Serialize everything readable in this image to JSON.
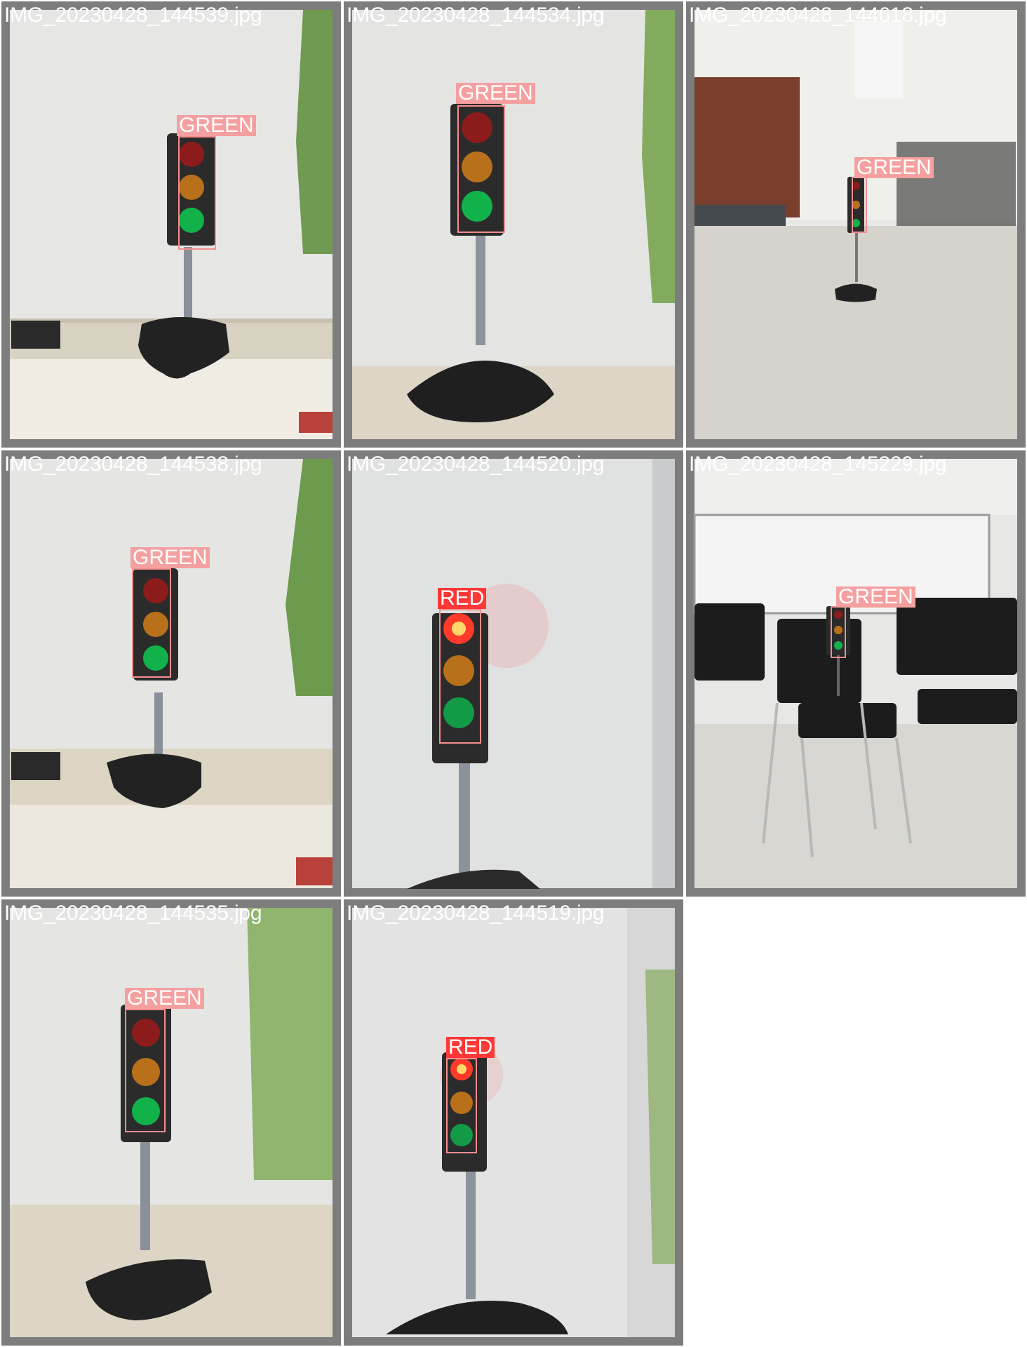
{
  "tiles": [
    {
      "file": "IMG_20230428_144539.jpg",
      "label": "GREEN",
      "scene": "wall"
    },
    {
      "file": "IMG_20230428_144534.jpg",
      "label": "GREEN",
      "scene": "wall"
    },
    {
      "file": "IMG_20230428_144618.jpg",
      "label": "GREEN",
      "scene": "room"
    },
    {
      "file": "IMG_20230428_144538.jpg",
      "label": "GREEN",
      "scene": "wall"
    },
    {
      "file": "IMG_20230428_144520.jpg",
      "label": "RED",
      "scene": "wall"
    },
    {
      "file": "IMG_20230428_145229.jpg",
      "label": "GREEN",
      "scene": "chairs"
    },
    {
      "file": "IMG_20230428_144535.jpg",
      "label": "GREEN",
      "scene": "wall"
    },
    {
      "file": "IMG_20230428_144519.jpg",
      "label": "RED",
      "scene": "wall"
    }
  ],
  "colors": {
    "green_box": "#f58e8e",
    "red_box": "#ff3838",
    "tile_border": "#8a8a8a"
  }
}
